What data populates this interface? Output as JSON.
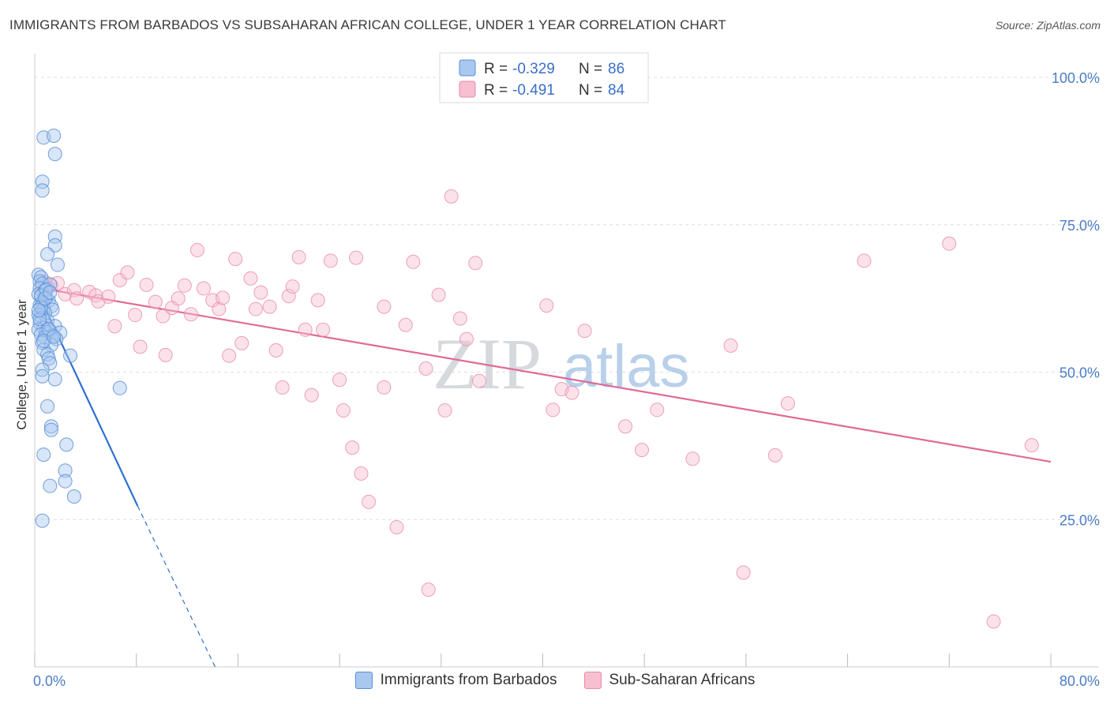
{
  "title": "IMMIGRANTS FROM BARBADOS VS SUBSAHARAN AFRICAN COLLEGE, UNDER 1 YEAR CORRELATION CHART",
  "source": "Source: ZipAtlas.com",
  "watermark": {
    "zip": "ZIP",
    "atlas": "atlas"
  },
  "colors": {
    "blue_fill": "#a8c8f0",
    "blue_stroke": "#5b8fd6",
    "blue_line": "#2e6fd0",
    "pink_fill": "#f7bfd0",
    "pink_stroke": "#e88aa8",
    "pink_line": "#e06a96",
    "axis_text": "#4a7cc7",
    "grid": "#dddddd"
  },
  "legend_top": [
    {
      "r_label": "R =",
      "r_value": "-0.329",
      "n_label": "N =",
      "n_value": "86",
      "color": "blue"
    },
    {
      "r_label": "R =",
      "r_value": "-0.491",
      "n_label": "N =",
      "n_value": "84",
      "color": "pink"
    }
  ],
  "chart_data": {
    "type": "scatter",
    "title": "IMMIGRANTS FROM BARBADOS VS SUBSAHARAN AFRICAN COLLEGE, UNDER 1 YEAR CORRELATION CHART",
    "xlabel": "",
    "ylabel": "College, Under 1 year",
    "xlim": [
      0,
      80
    ],
    "ylim": [
      0,
      100
    ],
    "x_tick_labels": [
      "0.0%",
      "80.0%"
    ],
    "y_tick_labels": [
      "100.0%",
      "75.0%",
      "50.0%",
      "25.0%"
    ],
    "y_tick_values": [
      100,
      75,
      50,
      25
    ],
    "legend_position": "bottom-center",
    "series": [
      {
        "name": "Immigrants from Barbados",
        "color": "blue",
        "r": -0.329,
        "n": 86,
        "trend": {
          "x0": 0.3,
          "y0": 63.2,
          "x1": 8.1,
          "y1": 27.3,
          "dash_x1": 14.2,
          "dash_y1": 0.0
        },
        "points": [
          [
            0.7,
            89.8
          ],
          [
            1.5,
            90.1
          ],
          [
            1.6,
            87.0
          ],
          [
            0.6,
            82.3
          ],
          [
            0.6,
            80.8
          ],
          [
            1.6,
            73.0
          ],
          [
            1.6,
            71.5
          ],
          [
            1.0,
            70.0
          ],
          [
            1.8,
            68.2
          ],
          [
            0.3,
            66.5
          ],
          [
            0.5,
            66.1
          ],
          [
            0.4,
            65.4
          ],
          [
            0.6,
            65.0
          ],
          [
            1.2,
            64.9
          ],
          [
            0.4,
            64.2
          ],
          [
            0.8,
            63.8
          ],
          [
            0.3,
            63.2
          ],
          [
            0.5,
            62.9
          ],
          [
            0.9,
            62.6
          ],
          [
            1.1,
            62.1
          ],
          [
            0.6,
            61.8
          ],
          [
            0.4,
            61.4
          ],
          [
            1.3,
            61.2
          ],
          [
            0.7,
            60.8
          ],
          [
            1.4,
            60.6
          ],
          [
            0.5,
            60.2
          ],
          [
            0.8,
            60.0
          ],
          [
            0.3,
            59.7
          ],
          [
            0.6,
            59.2
          ],
          [
            1.0,
            58.7
          ],
          [
            0.4,
            58.3
          ],
          [
            1.6,
            57.8
          ],
          [
            0.7,
            57.5
          ],
          [
            0.3,
            57.2
          ],
          [
            1.2,
            57.0
          ],
          [
            0.9,
            56.8
          ],
          [
            2.0,
            56.7
          ],
          [
            0.5,
            56.4
          ],
          [
            1.4,
            56.2
          ],
          [
            0.8,
            55.9
          ],
          [
            1.7,
            55.6
          ],
          [
            0.6,
            55.0
          ],
          [
            1.3,
            54.6
          ],
          [
            0.7,
            53.8
          ],
          [
            1.0,
            53.0
          ],
          [
            2.8,
            52.8
          ],
          [
            1.1,
            52.3
          ],
          [
            1.2,
            51.5
          ],
          [
            0.6,
            50.4
          ],
          [
            1.6,
            48.8
          ],
          [
            0.6,
            49.3
          ],
          [
            6.7,
            47.3
          ],
          [
            1.0,
            44.2
          ],
          [
            1.3,
            40.8
          ],
          [
            1.3,
            40.2
          ],
          [
            2.5,
            37.7
          ],
          [
            0.7,
            36.0
          ],
          [
            2.4,
            33.3
          ],
          [
            1.2,
            30.7
          ],
          [
            2.4,
            31.5
          ],
          [
            3.1,
            28.9
          ],
          [
            0.6,
            24.8
          ],
          [
            0.5,
            63.0
          ],
          [
            0.9,
            64.0
          ],
          [
            0.4,
            59.0
          ],
          [
            1.1,
            57.3
          ],
          [
            0.7,
            55.3
          ],
          [
            0.5,
            61.0
          ],
          [
            1.5,
            56.0
          ],
          [
            0.8,
            62.5
          ],
          [
            0.3,
            60.5
          ],
          [
            1.2,
            63.5
          ]
        ]
      },
      {
        "name": "Sub-Saharan Africans",
        "color": "pink",
        "r": -0.491,
        "n": 84,
        "trend": {
          "x0": 0.3,
          "y0": 64.3,
          "x1": 80.0,
          "y1": 34.8
        },
        "points": [
          [
            0.8,
            65.3
          ],
          [
            1.3,
            64.7
          ],
          [
            1.8,
            65.1
          ],
          [
            1.0,
            64.3
          ],
          [
            0.6,
            63.8
          ],
          [
            2.4,
            63.2
          ],
          [
            3.1,
            63.9
          ],
          [
            3.3,
            62.5
          ],
          [
            4.3,
            63.6
          ],
          [
            4.8,
            63.0
          ],
          [
            5.0,
            62.0
          ],
          [
            5.8,
            62.8
          ],
          [
            6.3,
            57.8
          ],
          [
            6.7,
            65.6
          ],
          [
            7.3,
            66.9
          ],
          [
            7.9,
            59.7
          ],
          [
            8.3,
            54.3
          ],
          [
            8.8,
            64.8
          ],
          [
            9.5,
            61.9
          ],
          [
            10.1,
            59.5
          ],
          [
            10.3,
            52.9
          ],
          [
            10.8,
            60.9
          ],
          [
            11.3,
            62.5
          ],
          [
            11.8,
            64.7
          ],
          [
            12.3,
            59.8
          ],
          [
            12.8,
            70.7
          ],
          [
            13.3,
            64.2
          ],
          [
            14.0,
            62.2
          ],
          [
            14.5,
            60.7
          ],
          [
            14.8,
            62.6
          ],
          [
            15.3,
            52.8
          ],
          [
            15.8,
            69.2
          ],
          [
            16.3,
            54.9
          ],
          [
            17.0,
            65.9
          ],
          [
            17.4,
            60.7
          ],
          [
            17.8,
            63.5
          ],
          [
            18.5,
            61.1
          ],
          [
            19.0,
            53.7
          ],
          [
            19.5,
            47.4
          ],
          [
            20.0,
            62.9
          ],
          [
            20.3,
            64.5
          ],
          [
            20.8,
            69.5
          ],
          [
            21.3,
            57.2
          ],
          [
            21.8,
            46.1
          ],
          [
            22.3,
            62.2
          ],
          [
            22.7,
            57.2
          ],
          [
            23.3,
            68.9
          ],
          [
            24.0,
            48.7
          ],
          [
            24.3,
            43.5
          ],
          [
            25.0,
            37.2
          ],
          [
            25.3,
            69.4
          ],
          [
            25.7,
            32.8
          ],
          [
            26.3,
            28.0
          ],
          [
            27.5,
            47.4
          ],
          [
            27.5,
            61.1
          ],
          [
            28.5,
            23.7
          ],
          [
            29.2,
            58.0
          ],
          [
            29.8,
            68.7
          ],
          [
            30.8,
            50.6
          ],
          [
            31.0,
            13.1
          ],
          [
            31.8,
            63.1
          ],
          [
            32.3,
            43.5
          ],
          [
            32.8,
            79.8
          ],
          [
            33.5,
            59.1
          ],
          [
            34.0,
            55.6
          ],
          [
            34.7,
            68.5
          ],
          [
            35.0,
            48.5
          ],
          [
            40.3,
            61.3
          ],
          [
            40.8,
            43.6
          ],
          [
            41.5,
            47.1
          ],
          [
            42.3,
            46.5
          ],
          [
            43.3,
            57.0
          ],
          [
            46.5,
            40.8
          ],
          [
            47.8,
            36.8
          ],
          [
            49.0,
            43.6
          ],
          [
            51.8,
            35.3
          ],
          [
            54.8,
            54.5
          ],
          [
            55.8,
            16.0
          ],
          [
            58.3,
            35.9
          ],
          [
            59.3,
            44.7
          ],
          [
            65.3,
            68.9
          ],
          [
            72.0,
            71.8
          ],
          [
            75.5,
            7.7
          ],
          [
            78.5,
            37.6
          ]
        ]
      }
    ]
  },
  "bottom_legend": [
    {
      "label": "Immigrants from Barbados",
      "color": "blue"
    },
    {
      "label": "Sub-Saharan Africans",
      "color": "pink"
    }
  ]
}
